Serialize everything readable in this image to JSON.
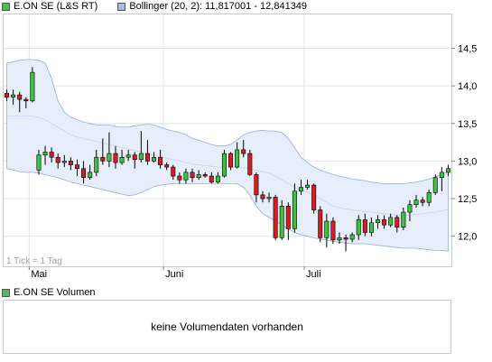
{
  "legend": [
    {
      "label": "E.ON SE (L&S RT)",
      "color": "#4cbf4c"
    },
    {
      "label": "Bollinger (20, 2): 11,817001 - 12,841349",
      "color": "#a9bde0"
    }
  ],
  "tick_note": "1 Tick = 1 Tag",
  "volume": {
    "legend_label": "E.ON SE Volumen",
    "legend_color": "#4cbf4c",
    "message": "keine Volumendaten vorhanden"
  },
  "colors": {
    "up": "#3cc23c",
    "down": "#d61e1e",
    "band_fill": "#e6eefc",
    "band_line": "#92aee0",
    "middle_line": "#c3d2ee",
    "grid": "#e4e4e4",
    "border": "#c8c8c8"
  },
  "chart_data": {
    "type": "candlestick",
    "y_ticks": [
      "14,5",
      "14,0",
      "13,5",
      "13,0",
      "12,5",
      "12,0"
    ],
    "y_tick_values": [
      14.5,
      14.0,
      13.5,
      13.0,
      12.5,
      12.0
    ],
    "ylim": [
      11.6,
      14.95
    ],
    "x_labels": [
      {
        "label": "Mai",
        "index": 4
      },
      {
        "label": "Juni",
        "index": 25
      },
      {
        "label": "Juli",
        "index": 47
      }
    ],
    "candles": [
      [
        13.9,
        13.85,
        13.95,
        13.8
      ],
      [
        13.85,
        13.88,
        13.95,
        13.75
      ],
      [
        13.88,
        13.82,
        13.92,
        13.65
      ],
      [
        13.82,
        13.8,
        13.85,
        13.7
      ],
      [
        13.8,
        14.18,
        14.25,
        13.78
      ],
      [
        12.88,
        13.08,
        13.15,
        12.82
      ],
      [
        13.08,
        13.12,
        13.2,
        12.95
      ],
      [
        13.12,
        13.05,
        13.18,
        12.98
      ],
      [
        13.05,
        12.98,
        13.1,
        12.9
      ],
      [
        12.98,
        13.0,
        13.08,
        12.92
      ],
      [
        13.0,
        12.95,
        13.05,
        12.88
      ],
      [
        12.95,
        12.9,
        13.02,
        12.8
      ],
      [
        12.9,
        12.78,
        13.0,
        12.7
      ],
      [
        12.78,
        12.85,
        12.95,
        12.75
      ],
      [
        12.85,
        13.05,
        13.15,
        12.8
      ],
      [
        13.05,
        13.0,
        13.3,
        12.95
      ],
      [
        13.0,
        13.1,
        13.38,
        12.92
      ],
      [
        13.1,
        12.98,
        13.2,
        12.9
      ],
      [
        12.98,
        13.05,
        13.15,
        12.95
      ],
      [
        13.05,
        13.08,
        13.15,
        13.0
      ],
      [
        13.08,
        13.02,
        13.12,
        12.9
      ],
      [
        13.02,
        13.1,
        13.4,
        12.98
      ],
      [
        13.1,
        13.0,
        13.28,
        12.95
      ],
      [
        13.0,
        13.05,
        13.12,
        12.98
      ],
      [
        13.05,
        12.95,
        13.15,
        12.9
      ],
      [
        12.95,
        12.92,
        12.98,
        12.88
      ],
      [
        12.92,
        12.8,
        12.95,
        12.75
      ],
      [
        12.8,
        12.75,
        12.85,
        12.7
      ],
      [
        12.75,
        12.85,
        12.9,
        12.7
      ],
      [
        12.85,
        12.78,
        12.9,
        12.72
      ],
      [
        12.78,
        12.82,
        12.88,
        12.75
      ],
      [
        12.82,
        12.8,
        12.85,
        12.78
      ],
      [
        12.8,
        12.72,
        12.85,
        12.7
      ],
      [
        12.72,
        12.8,
        12.85,
        12.7
      ],
      [
        12.8,
        13.1,
        13.15,
        12.78
      ],
      [
        13.1,
        12.92,
        13.12,
        12.88
      ],
      [
        12.92,
        13.15,
        13.25,
        12.9
      ],
      [
        13.15,
        13.1,
        13.28,
        13.05
      ],
      [
        13.1,
        12.82,
        13.15,
        12.8
      ],
      [
        12.82,
        12.55,
        12.85,
        12.45
      ],
      [
        12.55,
        12.5,
        12.6,
        12.45
      ],
      [
        12.5,
        12.52,
        12.58,
        12.45
      ],
      [
        12.52,
        11.98,
        12.55,
        11.95
      ],
      [
        11.98,
        12.4,
        12.48,
        11.95
      ],
      [
        12.4,
        12.1,
        12.45,
        11.95
      ],
      [
        12.1,
        12.6,
        12.7,
        12.05
      ],
      [
        12.6,
        12.65,
        12.75,
        12.55
      ],
      [
        12.65,
        12.68,
        12.75,
        12.62
      ],
      [
        12.68,
        12.35,
        12.7,
        12.3
      ],
      [
        12.35,
        11.98,
        12.4,
        11.92
      ],
      [
        11.98,
        12.2,
        12.3,
        11.85
      ],
      [
        12.2,
        11.95,
        12.25,
        11.9
      ],
      [
        11.95,
        11.98,
        12.05,
        11.9
      ],
      [
        11.98,
        11.96,
        12.02,
        11.8
      ],
      [
        11.96,
        12.02,
        12.05,
        11.92
      ],
      [
        12.02,
        12.22,
        12.28,
        11.95
      ],
      [
        12.22,
        12.05,
        12.3,
        12.0
      ],
      [
        12.05,
        12.18,
        12.25,
        12.0
      ],
      [
        12.18,
        12.22,
        12.28,
        12.1
      ],
      [
        12.22,
        12.15,
        12.28,
        12.1
      ],
      [
        12.15,
        12.25,
        12.3,
        12.12
      ],
      [
        12.25,
        12.12,
        12.28,
        12.05
      ],
      [
        12.12,
        12.32,
        12.38,
        12.08
      ],
      [
        12.32,
        12.42,
        12.48,
        12.2
      ],
      [
        12.42,
        12.48,
        12.55,
        12.38
      ],
      [
        12.48,
        12.45,
        12.52,
        12.4
      ],
      [
        12.45,
        12.58,
        12.62,
        12.4
      ],
      [
        12.58,
        12.78,
        12.82,
        12.55
      ],
      [
        12.78,
        12.85,
        12.92,
        12.6
      ],
      [
        12.85,
        12.9,
        12.95,
        12.8
      ]
    ],
    "bollinger_upper": [
      14.3,
      14.32,
      14.34,
      14.35,
      14.35,
      14.34,
      14.3,
      14.1,
      13.8,
      13.65,
      13.58,
      13.55,
      13.52,
      13.5,
      13.48,
      13.48,
      13.48,
      13.46,
      13.45,
      13.45,
      13.47,
      13.48,
      13.49,
      13.48,
      13.45,
      13.42,
      13.4,
      13.38,
      13.35,
      13.3,
      13.28,
      13.25,
      13.22,
      13.2,
      13.2,
      13.22,
      13.28,
      13.35,
      13.38,
      13.4,
      13.41,
      13.4,
      13.4,
      13.38,
      13.3,
      13.18,
      13.05,
      12.98,
      12.92,
      12.88,
      12.85,
      12.82,
      12.8,
      12.78,
      12.76,
      12.75,
      12.74,
      12.72,
      12.71,
      12.7,
      12.7,
      12.7,
      12.7,
      12.71,
      12.72,
      12.74,
      12.76,
      12.79,
      12.82,
      12.86
    ],
    "bollinger_middle": [
      13.6,
      13.6,
      13.6,
      13.6,
      13.6,
      13.58,
      13.55,
      13.5,
      13.45,
      13.4,
      13.35,
      13.32,
      13.3,
      13.28,
      13.26,
      13.24,
      13.22,
      13.2,
      13.18,
      13.16,
      13.14,
      13.12,
      13.1,
      13.08,
      13.06,
      13.04,
      13.02,
      13.0,
      12.98,
      12.96,
      12.95,
      12.94,
      12.93,
      12.92,
      12.92,
      12.92,
      12.92,
      12.91,
      12.9,
      12.88,
      12.86,
      12.84,
      12.8,
      12.75,
      12.7,
      12.65,
      12.62,
      12.58,
      12.55,
      12.5,
      12.45,
      12.4,
      12.38,
      12.36,
      12.35,
      12.34,
      12.33,
      12.32,
      12.31,
      12.3,
      12.29,
      12.28,
      12.27,
      12.28,
      12.29,
      12.3,
      12.31,
      12.32,
      12.34,
      12.35
    ],
    "bollinger_lower": [
      12.9,
      12.88,
      12.86,
      12.85,
      12.85,
      12.84,
      12.82,
      12.8,
      12.78,
      12.75,
      12.72,
      12.7,
      12.68,
      12.66,
      12.64,
      12.62,
      12.6,
      12.58,
      12.56,
      12.54,
      12.55,
      12.58,
      12.62,
      12.66,
      12.68,
      12.69,
      12.7,
      12.7,
      12.7,
      12.7,
      12.7,
      12.7,
      12.7,
      12.7,
      12.7,
      12.7,
      12.7,
      12.65,
      12.55,
      12.4,
      12.3,
      12.25,
      12.2,
      12.15,
      12.1,
      12.05,
      12.02,
      12.0,
      11.98,
      11.96,
      11.95,
      11.93,
      11.92,
      11.91,
      11.9,
      11.9,
      11.9,
      11.89,
      11.88,
      11.87,
      11.86,
      11.85,
      11.84,
      11.84,
      11.84,
      11.83,
      11.82,
      11.81,
      11.81,
      11.8
    ]
  }
}
